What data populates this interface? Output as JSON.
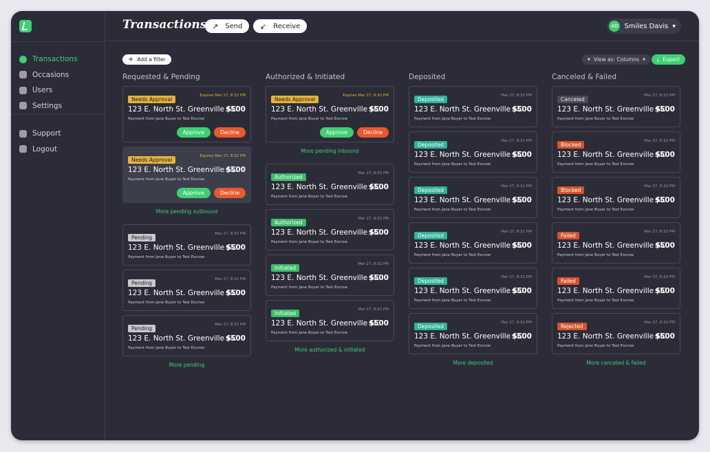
{
  "sidebar": {
    "nav": [
      {
        "label": "Transactions",
        "active": true
      },
      {
        "label": "Occasions"
      },
      {
        "label": "Users"
      },
      {
        "label": "Settings"
      }
    ],
    "secondary": [
      {
        "label": "Support"
      },
      {
        "label": "Logout"
      }
    ]
  },
  "header": {
    "title": "Transactions",
    "actions": [
      "Send",
      "Receive"
    ],
    "user": {
      "initials": "AD",
      "name": "Smiles Davis"
    }
  },
  "toolbar": {
    "filter": "Add a filter",
    "view": "View as: Columns",
    "export": "Export"
  },
  "columns": [
    {
      "title": "Requested & Pending",
      "groups": [
        {
          "cards": [
            {
              "status": "Needs Approval",
              "badge_color": "#e3b53b",
              "date": "Expires Mar 27, 8:32 PM",
              "date_color": "#e3b53b",
              "address": "123 E. North St. Greenville SC",
              "amount": "$500",
              "note": "Payment from Jane Buyer to Test Escrow",
              "actions": [
                "Approve",
                "Decline"
              ]
            },
            {
              "status": "Needs Approval",
              "badge_color": "#e3b53b",
              "date": "Expires Mar 27, 8:32 PM",
              "date_color": "#e3b53b",
              "address": "123 E. North St. Greenville SC",
              "amount": "$500",
              "note": "Payment from Jane Buyer to Test Escrow",
              "actions": [
                "Approve",
                "Decline"
              ],
              "selected": true
            }
          ],
          "more": "More pending outbound"
        },
        {
          "cards": [
            {
              "status": "Pending",
              "badge_color": "#c8c8ce",
              "date": "Mar 27, 8:32 PM",
              "address": "123 E. North St. Greenville SC",
              "amount": "$500",
              "note": "Payment from Jane Buyer to Test Escrow"
            },
            {
              "status": "Pending",
              "badge_color": "#c8c8ce",
              "date": "Mar 27, 8:32 PM",
              "address": "123 E. North St. Greenville SC",
              "amount": "$500",
              "note": "Payment from Jane Buyer to Test Escrow"
            },
            {
              "status": "Pending",
              "badge_color": "#c8c8ce",
              "date": "Mar 27, 8:32 PM",
              "address": "123 E. North St. Greenville SC",
              "amount": "$500",
              "note": "Payment from Jane Buyer to Test Escrow"
            }
          ],
          "more": "More pending"
        }
      ]
    },
    {
      "title": "Authorized & Initiated",
      "groups": [
        {
          "cards": [
            {
              "status": "Needs Approval",
              "badge_color": "#e3b53b",
              "date": "Expires Mar 27, 8:32 PM",
              "date_color": "#e3b53b",
              "address": "123 E. North St. Greenville SC",
              "amount": "$500",
              "note": "Payment from Jane Buyer to Test Escrow",
              "actions": [
                "Approve",
                "Decline"
              ]
            }
          ],
          "more": "More pending inbound"
        },
        {
          "cards": [
            {
              "status": "Authorized",
              "badge_color": "#3dbd6b",
              "date": "Mar 27, 8:32 PM",
              "address": "123 E. North St. Greenville SC",
              "amount": "$500",
              "note": "Payment from Jane Buyer to Test Escrow"
            },
            {
              "status": "Authorized",
              "badge_color": "#3dbd6b",
              "date": "Mar 27, 8:32 PM",
              "address": "123 E. North St. Greenville SC",
              "amount": "$500",
              "note": "Payment from Jane Buyer to Test Escrow"
            },
            {
              "status": "Initiated",
              "badge_color": "#3dbd6b",
              "date": "Mar 27, 8:32 PM",
              "address": "123 E. North St. Greenville SC",
              "amount": "$500",
              "note": "Payment from Jane Buyer to Test Escrow"
            },
            {
              "status": "Initiated",
              "badge_color": "#3dbd6b",
              "date": "Mar 27, 8:32 PM",
              "address": "123 E. North St. Greenville SC",
              "amount": "$500",
              "note": "Payment from Jane Buyer to Test Escrow"
            }
          ],
          "more": "More authorized & initiated"
        }
      ]
    },
    {
      "title": "Deposited",
      "groups": [
        {
          "cards": [
            {
              "status": "Deposited",
              "badge_color": "#2fb39a",
              "date": "Mar 27, 8:32 PM",
              "address": "123 E. North St. Greenville SC",
              "amount": "$500",
              "note": "Payment from Jane Buyer to Test Escrow"
            },
            {
              "status": "Deposited",
              "badge_color": "#2fb39a",
              "date": "Mar 27, 8:32 PM",
              "address": "123 E. North St. Greenville SC",
              "amount": "$500",
              "note": "Payment from Jane Buyer to Test Escrow"
            },
            {
              "status": "Deposited",
              "badge_color": "#2fb39a",
              "date": "Mar 27, 8:32 PM",
              "address": "123 E. North St. Greenville SC",
              "amount": "$500",
              "note": "Payment from Jane Buyer to Test Escrow"
            },
            {
              "status": "Deposited",
              "badge_color": "#2fb39a",
              "date": "Mar 27, 8:32 PM",
              "address": "123 E. North St. Greenville SC",
              "amount": "$500",
              "note": "Payment from Jane Buyer to Test Escrow"
            },
            {
              "status": "Deposited",
              "badge_color": "#2fb39a",
              "date": "Mar 27, 8:32 PM",
              "address": "123 E. North St. Greenville SC",
              "amount": "$500",
              "note": "Payment from Jane Buyer to Test Escrow"
            },
            {
              "status": "Deposited",
              "badge_color": "#2fb39a",
              "date": "Mar 27, 8:32 PM",
              "address": "123 E. North St. Greenville SC",
              "amount": "$500",
              "note": "Payment from Jane Buyer to Test Escrow"
            }
          ],
          "more": "More deposited"
        }
      ]
    },
    {
      "title": "Canceled & Failed",
      "groups": [
        {
          "cards": [
            {
              "status": "Canceled",
              "badge_color": "#4a4a56",
              "date": "Mar 27, 8:32 PM",
              "address": "123 E. North St. Greenville SC",
              "amount": "$500",
              "note": "Payment from Jane Buyer to Test Escrow"
            },
            {
              "status": "Blocked",
              "badge_color": "#d4532a",
              "date": "Mar 27, 8:32 PM",
              "address": "123 E. North St. Greenville SC",
              "amount": "$500",
              "note": "Payment from Jane Buyer to Test Escrow"
            },
            {
              "status": "Blocked",
              "badge_color": "#d4532a",
              "date": "Mar 27, 8:32 PM",
              "address": "123 E. North St. Greenville SC",
              "amount": "$500",
              "note": "Payment from Jane Buyer to Test Escrow"
            },
            {
              "status": "Failed",
              "badge_color": "#d4532a",
              "date": "Mar 27, 8:32 PM",
              "address": "123 E. North St. Greenville SC",
              "amount": "$500",
              "note": "Payment from Jane Buyer to Test Escrow"
            },
            {
              "status": "Failed",
              "badge_color": "#d4532a",
              "date": "Mar 27, 8:32 PM",
              "address": "123 E. North St. Greenville SC",
              "amount": "$500",
              "note": "Payment from Jane Buyer to Test Escrow"
            },
            {
              "status": "Rejected",
              "badge_color": "#d4532a",
              "date": "Mar 27, 8:32 PM",
              "address": "123 E. North St. Greenville SC",
              "amount": "$500",
              "note": "Payment from Jane Buyer to Test Escrow"
            }
          ],
          "more": "More canceled & failed"
        }
      ]
    }
  ]
}
